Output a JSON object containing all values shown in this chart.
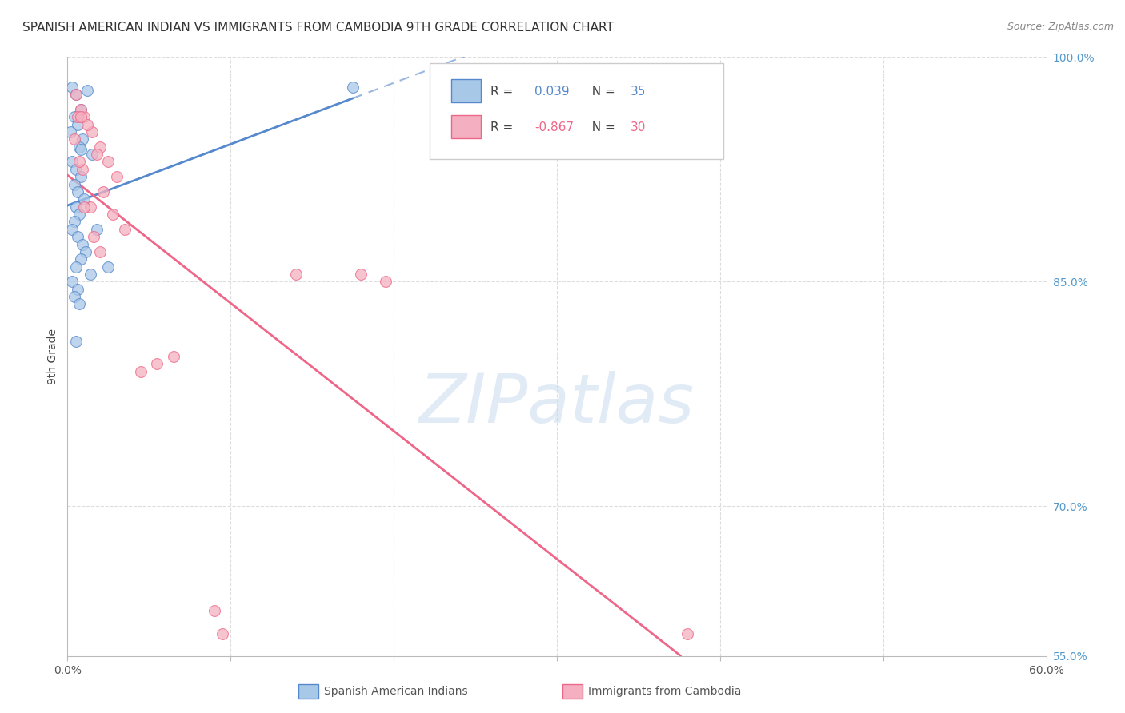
{
  "title": "SPANISH AMERICAN INDIAN VS IMMIGRANTS FROM CAMBODIA 9TH GRADE CORRELATION CHART",
  "source": "Source: ZipAtlas.com",
  "ylabel": "9th Grade",
  "xlim": [
    0.0,
    60.0
  ],
  "ylim": [
    60.0,
    100.0
  ],
  "blue_r": 0.039,
  "blue_n": 35,
  "pink_r": -0.867,
  "pink_n": 30,
  "blue_color": "#a8c8e8",
  "pink_color": "#f4b0c0",
  "blue_line_color": "#5588cc",
  "pink_line_color": "#ee6688",
  "blue_scatter_x": [
    0.3,
    0.5,
    0.8,
    1.2,
    0.4,
    0.6,
    0.9,
    0.2,
    0.7,
    1.5,
    0.3,
    0.5,
    0.8,
    0.4,
    0.6,
    1.0,
    0.5,
    0.7,
    0.4,
    0.3,
    0.6,
    0.9,
    1.1,
    0.8,
    0.5,
    1.4,
    0.3,
    0.6,
    0.4,
    0.7,
    2.5,
    1.8,
    0.8,
    17.5,
    0.5
  ],
  "blue_scatter_y": [
    98.0,
    97.5,
    96.5,
    97.8,
    96.0,
    95.5,
    94.5,
    95.0,
    94.0,
    93.5,
    93.0,
    92.5,
    92.0,
    91.5,
    91.0,
    90.5,
    90.0,
    89.5,
    89.0,
    88.5,
    88.0,
    87.5,
    87.0,
    86.5,
    86.0,
    85.5,
    85.0,
    84.5,
    84.0,
    83.5,
    86.0,
    88.5,
    93.8,
    98.0,
    81.0
  ],
  "pink_scatter_x": [
    0.5,
    1.0,
    1.5,
    0.8,
    2.0,
    1.2,
    0.6,
    2.5,
    0.4,
    3.0,
    1.8,
    0.9,
    2.2,
    1.4,
    3.5,
    2.8,
    1.6,
    0.7,
    2.0,
    4.5,
    9.0,
    9.5,
    18.0,
    19.5,
    14.0,
    5.5,
    6.5,
    0.8,
    1.0,
    38.0
  ],
  "pink_scatter_y": [
    97.5,
    96.0,
    95.0,
    96.5,
    94.0,
    95.5,
    96.0,
    93.0,
    94.5,
    92.0,
    93.5,
    92.5,
    91.0,
    90.0,
    88.5,
    89.5,
    88.0,
    93.0,
    87.0,
    79.0,
    63.0,
    61.5,
    85.5,
    85.0,
    85.5,
    79.5,
    80.0,
    96.0,
    90.0,
    61.5
  ],
  "background_color": "#ffffff",
  "grid_color": "#dddddd",
  "right_ytick_positions": [
    100.0,
    85.0,
    70.0,
    55.0
  ],
  "right_ytick_labels": [
    "100.0%",
    "85.0%",
    "70.0%",
    "55.0%"
  ]
}
